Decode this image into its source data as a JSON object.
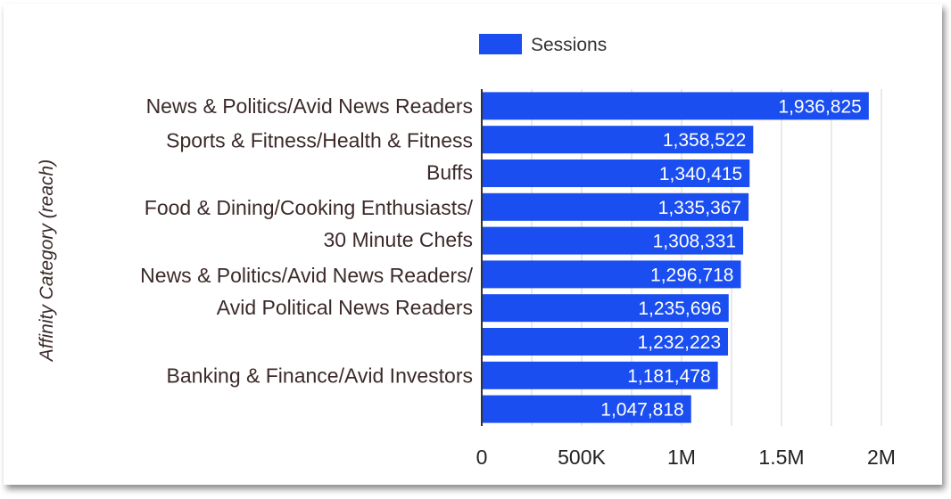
{
  "chart_data": {
    "type": "bar",
    "orientation": "horizontal",
    "title": "",
    "ylabel": "Affinity Category (reach)",
    "xlabel": "",
    "xlim": [
      0,
      2000000
    ],
    "x_ticks": [
      "0",
      "500K",
      "1M",
      "1.5M",
      "2M"
    ],
    "grid": true,
    "legend_position": "top",
    "series": [
      {
        "name": "Sessions",
        "color": "#1a4ef0",
        "values": [
          1936825,
          1358522,
          1340415,
          1335367,
          1308331,
          1296718,
          1235696,
          1232223,
          1181478,
          1047818
        ],
        "value_labels": [
          "1,936,825",
          "1,358,522",
          "1,340,415",
          "1,335,367",
          "1,308,331",
          "1,296,718",
          "1,235,696",
          "1,232,223",
          "1,181,478",
          "1,047,818"
        ]
      }
    ],
    "visible_category_labels": [
      "News & Politics/Avid News Readers",
      "Sports & Fitness/Health & Fitness Buffs",
      "Food & Dining/Cooking Enthusiasts/ 30 Minute Chefs",
      "News & Politics/Avid News Readers/ Avid Political News Readers",
      "Banking & Finance/Avid Investors"
    ]
  }
}
